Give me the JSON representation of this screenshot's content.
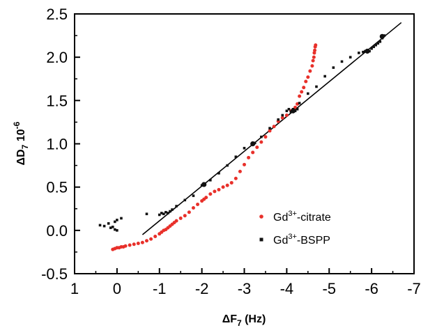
{
  "chart_data": {
    "type": "scatter",
    "title": "",
    "xlabel": {
      "main": "ΔF",
      "sub": "7",
      "unit": " (Hz)"
    },
    "ylabel": {
      "main": "ΔD",
      "sub": "7",
      "unit": " 10",
      "sup": "-6"
    },
    "xlim": [
      1,
      -7
    ],
    "ylim": [
      -0.5,
      2.5
    ],
    "xticks": [
      "1",
      "0",
      "-1",
      "-2",
      "-3",
      "-4",
      "-5",
      "-6",
      "-7"
    ],
    "yticks": [
      "-0.5",
      "0.0",
      "0.5",
      "1.0",
      "1.5",
      "2.0",
      "2.5"
    ],
    "legend_position": "lower-right",
    "series": [
      {
        "name": "Gd3+-citrate",
        "label": {
          "prefix": "Gd",
          "sup": "3+",
          "suffix": "-citrate"
        },
        "color": "#e8302a",
        "x": [
          0.1,
          0.05,
          0.0,
          -0.05,
          -0.1,
          -0.15,
          -0.2,
          -0.3,
          -0.4,
          -0.5,
          -0.6,
          -0.7,
          -0.8,
          -0.9,
          -1.0,
          -1.05,
          -1.1,
          -1.15,
          -1.2,
          -1.25,
          -1.3,
          -1.35,
          -1.4,
          -1.5,
          -1.6,
          -1.7,
          -1.8,
          -1.9,
          -2.0,
          -2.05,
          -2.1,
          -2.2,
          -2.3,
          -2.4,
          -2.5,
          -2.6,
          -2.7,
          -2.8,
          -2.9,
          -3.0,
          -3.1,
          -3.2,
          -3.3,
          -3.4,
          -3.5,
          -3.6,
          -3.7,
          -3.8,
          -3.9,
          -4.0,
          -4.1,
          -4.2,
          -4.25,
          -4.3,
          -4.35,
          -4.4,
          -4.45,
          -4.5,
          -4.55,
          -4.6,
          -4.62,
          -4.64,
          -4.65,
          -4.66,
          -4.67,
          -4.68
        ],
        "y": [
          -0.22,
          -0.21,
          -0.2,
          -0.2,
          -0.19,
          -0.19,
          -0.18,
          -0.17,
          -0.16,
          -0.15,
          -0.14,
          -0.12,
          -0.1,
          -0.07,
          -0.04,
          -0.02,
          -0.0,
          0.01,
          0.03,
          0.05,
          0.07,
          0.09,
          0.11,
          0.14,
          0.17,
          0.21,
          0.26,
          0.3,
          0.34,
          0.36,
          0.38,
          0.42,
          0.45,
          0.47,
          0.5,
          0.52,
          0.55,
          0.6,
          0.68,
          0.76,
          0.84,
          0.9,
          0.96,
          1.02,
          1.08,
          1.15,
          1.2,
          1.26,
          1.3,
          1.33,
          1.38,
          1.42,
          1.46,
          1.55,
          1.6,
          1.65,
          1.72,
          1.77,
          1.84,
          1.9,
          1.96,
          2.0,
          2.05,
          2.08,
          2.12,
          2.14
        ]
      },
      {
        "name": "Gd3+-BSPP",
        "label": {
          "prefix": "Gd",
          "sup": "3+",
          "suffix": "-BSPP"
        },
        "color": "#111111",
        "x": [
          0.4,
          0.3,
          0.2,
          0.1,
          0.05,
          0.0,
          0.15,
          0.05,
          0.0,
          -0.1,
          -0.7,
          -1.0,
          -1.05,
          -1.1,
          -1.15,
          -1.2,
          -1.25,
          -1.3,
          -1.4,
          -1.6,
          -1.8,
          -2.0,
          -2.05,
          -2.2,
          -2.4,
          -2.6,
          -2.8,
          -3.0,
          -3.2,
          -3.25,
          -3.4,
          -3.6,
          -3.8,
          -3.9,
          -4.0,
          -4.05,
          -4.1,
          -4.15,
          -4.2,
          -4.25,
          -4.3,
          -4.5,
          -4.7,
          -4.9,
          -5.1,
          -5.3,
          -5.5,
          -5.7,
          -5.8,
          -5.85,
          -5.9,
          -5.95,
          -6.0,
          -6.05,
          -6.1,
          -6.15,
          -6.2,
          -6.25,
          -6.3
        ],
        "y": [
          0.06,
          0.05,
          0.08,
          0.04,
          0.1,
          0.12,
          0.03,
          0.01,
          -0.0,
          0.14,
          0.19,
          0.18,
          0.2,
          0.19,
          0.21,
          0.2,
          0.22,
          0.24,
          0.28,
          0.35,
          0.4,
          0.52,
          0.54,
          0.58,
          0.66,
          0.75,
          0.85,
          0.95,
          1.0,
          1.01,
          1.08,
          1.18,
          1.28,
          1.33,
          1.38,
          1.4,
          1.37,
          1.4,
          1.38,
          1.4,
          1.47,
          1.58,
          1.66,
          1.78,
          1.88,
          1.95,
          2.0,
          2.05,
          2.06,
          2.07,
          2.08,
          2.07,
          2.1,
          2.12,
          2.14,
          2.16,
          2.18,
          2.22,
          2.25
        ]
      }
    ],
    "highlight_points": [
      {
        "x": -2.05,
        "y": 0.53
      },
      {
        "x": -3.2,
        "y": 1.0
      },
      {
        "x": -4.15,
        "y": 1.38
      },
      {
        "x": -5.9,
        "y": 2.07
      },
      {
        "x": -6.25,
        "y": 2.24
      }
    ],
    "fit_line": {
      "x": [
        -0.6,
        -6.7
      ],
      "y": [
        -0.05,
        2.4
      ],
      "color": "#000000"
    }
  }
}
